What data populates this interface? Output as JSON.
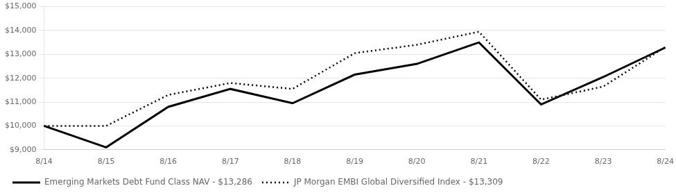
{
  "chart_data": {
    "type": "line",
    "categories": [
      "8/14",
      "8/15",
      "8/16",
      "8/17",
      "8/18",
      "8/19",
      "8/20",
      "8/21",
      "8/22",
      "8/23",
      "8/24"
    ],
    "series": [
      {
        "name": "Emerging Markets Debt Fund Class NAV - $13,286",
        "color": "#000000",
        "line_style": "solid",
        "values": [
          10000,
          9100,
          10800,
          11550,
          10950,
          12150,
          12600,
          13500,
          10900,
          12050,
          13286
        ]
      },
      {
        "name": "JP Morgan EMBI Global Diversified Index - $13,309",
        "color": "#000000",
        "line_style": "dotted",
        "values": [
          10000,
          10000,
          11300,
          11800,
          11550,
          13050,
          13400,
          13950,
          11100,
          11650,
          13309
        ]
      }
    ],
    "ylim": [
      9000,
      15000
    ],
    "yticks": [
      {
        "value": 9000,
        "label": "$9,000"
      },
      {
        "value": 10000,
        "label": "$10,000"
      },
      {
        "value": 11000,
        "label": "$11,000"
      },
      {
        "value": 12000,
        "label": "$12,000"
      },
      {
        "value": 13000,
        "label": "$13,000"
      },
      {
        "value": 14000,
        "label": "$14,000"
      },
      {
        "value": 15000,
        "label": "$15,000"
      }
    ],
    "grid": true,
    "legend": "bottom"
  }
}
